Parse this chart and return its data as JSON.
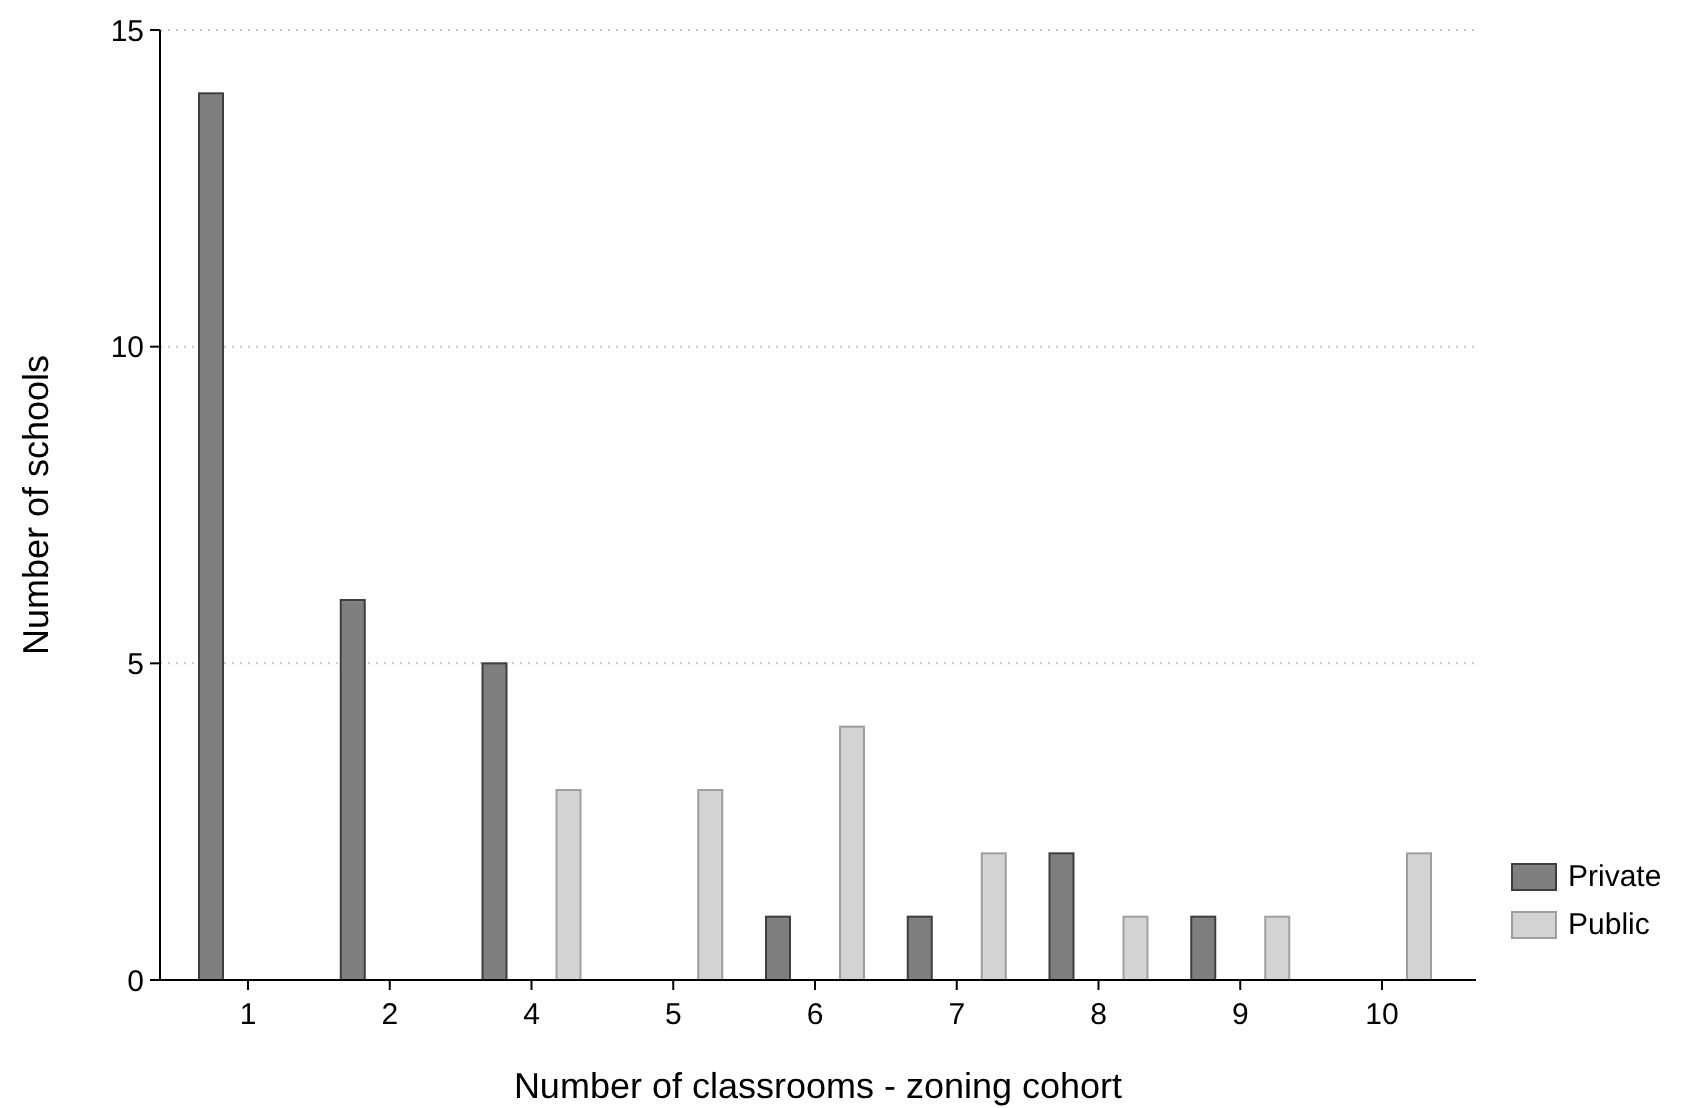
{
  "chart_data": {
    "type": "bar",
    "xlabel": "Number of classrooms - zoning cohort",
    "ylabel": "Number of schools",
    "categories": [
      "1",
      "2",
      "4",
      "5",
      "6",
      "7",
      "8",
      "9",
      "10"
    ],
    "series": [
      {
        "name": "Private",
        "color": "#7f7f7f",
        "values": [
          14,
          6,
          5,
          0,
          1,
          1,
          2,
          1,
          0
        ]
      },
      {
        "name": "Public",
        "color": "#d3d3d3",
        "values": [
          0,
          0,
          3,
          3,
          4,
          2,
          1,
          1,
          2
        ]
      }
    ],
    "ylim": [
      0,
      15
    ],
    "yticks": [
      0,
      5,
      10,
      15
    ],
    "grid": "y",
    "legend": "right"
  }
}
